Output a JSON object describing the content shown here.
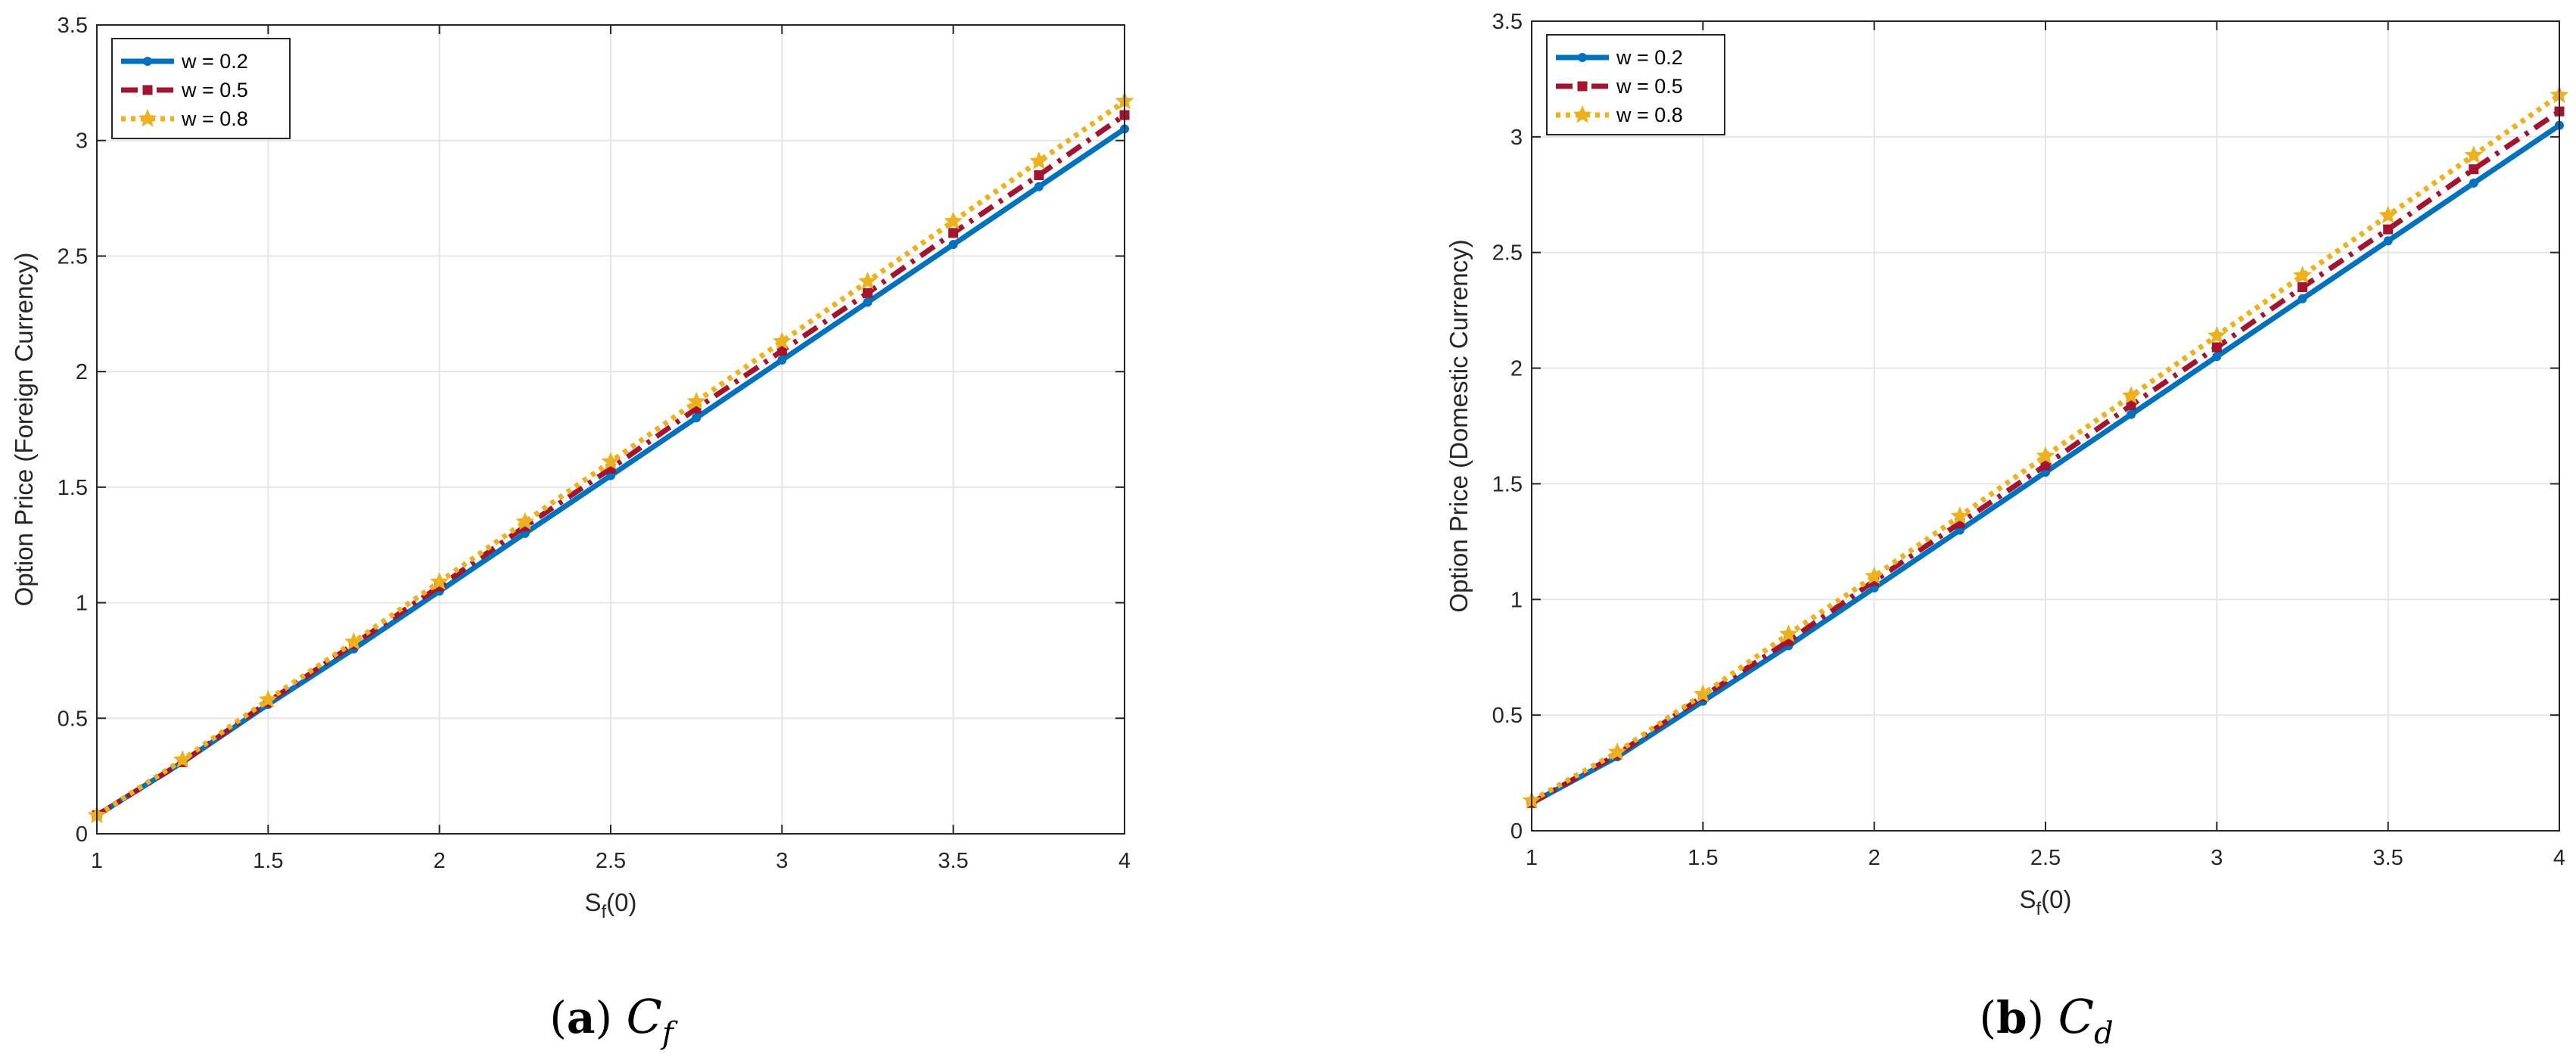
{
  "chart_data": [
    {
      "type": "line",
      "panel": "(a)",
      "caption_label": "a",
      "caption_symbol": "C",
      "caption_subscript": "f",
      "xlabel_main": "S",
      "xlabel_sub": "f",
      "xlabel_tail": "(0)",
      "ylabel": "Option Price (Foreign Currency)",
      "xlim": [
        1,
        4
      ],
      "ylim": [
        0,
        3.5
      ],
      "xticks": [
        "1",
        "1.5",
        "2",
        "2.5",
        "3",
        "3.5",
        "4"
      ],
      "yticks": [
        "0",
        "0.5",
        "1",
        "1.5",
        "2",
        "2.5",
        "3",
        "3.5"
      ],
      "grid": true,
      "legend_position": "top-left",
      "x": [
        1,
        1.25,
        1.5,
        1.75,
        2,
        2.25,
        2.5,
        2.75,
        3,
        3.25,
        3.5,
        3.75,
        4
      ],
      "series": [
        {
          "name": "w = 0.2",
          "color": "#0072BD",
          "values": [
            0.08,
            0.31,
            0.56,
            0.8,
            1.05,
            1.3,
            1.55,
            1.8,
            2.05,
            2.3,
            2.55,
            2.8,
            3.05
          ]
        },
        {
          "name": "w = 0.5",
          "color": "#A2142F",
          "values": [
            0.08,
            0.31,
            0.57,
            0.82,
            1.07,
            1.33,
            1.58,
            1.84,
            2.09,
            2.34,
            2.6,
            2.85,
            3.11
          ]
        },
        {
          "name": "w = 0.8",
          "color": "#EDB120",
          "values": [
            0.08,
            0.32,
            0.58,
            0.83,
            1.09,
            1.35,
            1.61,
            1.87,
            2.13,
            2.39,
            2.65,
            2.91,
            3.17
          ]
        }
      ]
    },
    {
      "type": "line",
      "panel": "(b)",
      "caption_label": "b",
      "caption_symbol": "C",
      "caption_subscript": "d",
      "xlabel_main": "S",
      "xlabel_sub": "f",
      "xlabel_tail": "(0)",
      "ylabel": "Option Price (Domestic Currency)",
      "xlim": [
        1,
        4
      ],
      "ylim": [
        0,
        3.5
      ],
      "xticks": [
        "1",
        "1.5",
        "2",
        "2.5",
        "3",
        "3.5",
        "4"
      ],
      "yticks": [
        "0",
        "0.5",
        "1",
        "1.5",
        "2",
        "2.5",
        "3",
        "3.5"
      ],
      "grid": true,
      "legend_position": "top-left",
      "x": [
        1,
        1.25,
        1.5,
        1.75,
        2,
        2.25,
        2.5,
        2.75,
        3,
        3.25,
        3.5,
        3.75,
        4
      ],
      "series": [
        {
          "name": "w = 0.2",
          "color": "#0072BD",
          "values": [
            0.12,
            0.32,
            0.56,
            0.8,
            1.05,
            1.3,
            1.55,
            1.8,
            2.05,
            2.3,
            2.55,
            2.8,
            3.05
          ]
        },
        {
          "name": "w = 0.5",
          "color": "#A2142F",
          "values": [
            0.12,
            0.33,
            0.58,
            0.82,
            1.08,
            1.33,
            1.58,
            1.84,
            2.09,
            2.35,
            2.6,
            2.86,
            3.11
          ]
        },
        {
          "name": "w = 0.8",
          "color": "#EDB120",
          "values": [
            0.13,
            0.34,
            0.59,
            0.85,
            1.1,
            1.36,
            1.62,
            1.88,
            2.14,
            2.4,
            2.66,
            2.92,
            3.18
          ]
        }
      ]
    }
  ]
}
